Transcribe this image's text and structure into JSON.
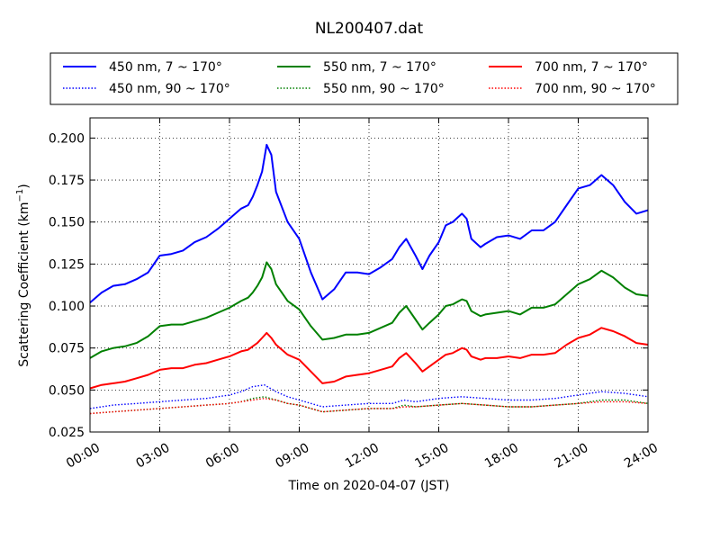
{
  "chart_data": {
    "type": "line",
    "title": "NL200407.dat",
    "xlabel": "Time on 2020-04-07 (JST)",
    "ylabel": "Scattering Coefficient (km",
    "ylabel_sup": "−1",
    "ylabel_close": ")",
    "x_unit": "time of day (hours)",
    "xlim": [
      0,
      24
    ],
    "ylim": [
      0.025,
      0.212
    ],
    "grid": true,
    "legend_placement": "top, above plot",
    "x_ticks": [
      {
        "value": 0,
        "label": "00:00"
      },
      {
        "value": 3,
        "label": "03:00"
      },
      {
        "value": 6,
        "label": "06:00"
      },
      {
        "value": 9,
        "label": "09:00"
      },
      {
        "value": 12,
        "label": "12:00"
      },
      {
        "value": 15,
        "label": "15:00"
      },
      {
        "value": 18,
        "label": "18:00"
      },
      {
        "value": 21,
        "label": "21:00"
      },
      {
        "value": 24,
        "label": "24:00"
      }
    ],
    "y_ticks": [
      {
        "value": 0.025,
        "label": "0.025"
      },
      {
        "value": 0.05,
        "label": "0.050"
      },
      {
        "value": 0.075,
        "label": "0.075"
      },
      {
        "value": 0.1,
        "label": "0.100"
      },
      {
        "value": 0.125,
        "label": "0.125"
      },
      {
        "value": 0.15,
        "label": "0.150"
      },
      {
        "value": 0.175,
        "label": "0.175"
      },
      {
        "value": 0.2,
        "label": "0.200"
      }
    ],
    "series": [
      {
        "name": "450 nm, 7 ~ 170°",
        "color": "#0000ff",
        "style": "solid",
        "x": [
          0,
          0.5,
          1,
          1.5,
          2,
          2.5,
          3,
          3.5,
          4,
          4.5,
          5,
          5.5,
          6,
          6.5,
          6.8,
          7,
          7.2,
          7.4,
          7.6,
          7.8,
          8,
          8.5,
          9,
          9.5,
          10,
          10.5,
          11,
          11.5,
          12,
          12.5,
          13,
          13.3,
          13.6,
          14,
          14.3,
          14.6,
          15,
          15.3,
          15.6,
          16,
          16.2,
          16.4,
          16.8,
          17,
          17.5,
          18,
          18.5,
          19,
          19.5,
          20,
          20.5,
          21,
          21.5,
          22,
          22.5,
          23,
          23.5,
          24
        ],
        "y": [
          0.102,
          0.108,
          0.112,
          0.113,
          0.116,
          0.12,
          0.13,
          0.131,
          0.133,
          0.138,
          0.141,
          0.146,
          0.152,
          0.158,
          0.16,
          0.165,
          0.172,
          0.18,
          0.196,
          0.19,
          0.168,
          0.15,
          0.14,
          0.12,
          0.104,
          0.11,
          0.12,
          0.12,
          0.119,
          0.123,
          0.128,
          0.135,
          0.14,
          0.13,
          0.122,
          0.13,
          0.138,
          0.148,
          0.15,
          0.155,
          0.152,
          0.14,
          0.135,
          0.137,
          0.141,
          0.142,
          0.14,
          0.145,
          0.145,
          0.15,
          0.16,
          0.17,
          0.172,
          0.178,
          0.172,
          0.162,
          0.155,
          0.157
        ]
      },
      {
        "name": "450 nm, 90 ~ 170°",
        "color": "#0000ff",
        "style": "dotted",
        "x": [
          0,
          1,
          2,
          3,
          4,
          5,
          6,
          6.5,
          7,
          7.5,
          8,
          8.5,
          9,
          10,
          11,
          12,
          13,
          13.5,
          14,
          15,
          16,
          17,
          18,
          19,
          20,
          21,
          22,
          23,
          24
        ],
        "y": [
          0.039,
          0.041,
          0.042,
          0.043,
          0.044,
          0.045,
          0.047,
          0.049,
          0.052,
          0.053,
          0.049,
          0.046,
          0.044,
          0.04,
          0.041,
          0.042,
          0.042,
          0.044,
          0.043,
          0.045,
          0.046,
          0.045,
          0.044,
          0.044,
          0.045,
          0.047,
          0.049,
          0.048,
          0.046
        ]
      },
      {
        "name": "550 nm, 7 ~ 170°",
        "color": "#008000",
        "style": "solid",
        "x": [
          0,
          0.5,
          1,
          1.5,
          2,
          2.5,
          3,
          3.5,
          4,
          4.5,
          5,
          5.5,
          6,
          6.5,
          6.8,
          7,
          7.2,
          7.4,
          7.6,
          7.8,
          8,
          8.5,
          9,
          9.5,
          10,
          10.5,
          11,
          11.5,
          12,
          12.5,
          13,
          13.3,
          13.6,
          14,
          14.3,
          14.6,
          15,
          15.3,
          15.6,
          16,
          16.2,
          16.4,
          16.8,
          17,
          17.5,
          18,
          18.5,
          19,
          19.5,
          20,
          20.5,
          21,
          21.5,
          22,
          22.5,
          23,
          23.5,
          24
        ],
        "y": [
          0.069,
          0.073,
          0.075,
          0.076,
          0.078,
          0.082,
          0.088,
          0.089,
          0.089,
          0.091,
          0.093,
          0.096,
          0.099,
          0.103,
          0.105,
          0.108,
          0.112,
          0.117,
          0.126,
          0.122,
          0.113,
          0.103,
          0.098,
          0.088,
          0.08,
          0.081,
          0.083,
          0.083,
          0.084,
          0.087,
          0.09,
          0.096,
          0.1,
          0.092,
          0.086,
          0.09,
          0.095,
          0.1,
          0.101,
          0.104,
          0.103,
          0.097,
          0.094,
          0.095,
          0.096,
          0.097,
          0.095,
          0.099,
          0.099,
          0.101,
          0.107,
          0.113,
          0.116,
          0.121,
          0.117,
          0.111,
          0.107,
          0.106
        ]
      },
      {
        "name": "550 nm, 90 ~ 170°",
        "color": "#008000",
        "style": "dotted",
        "x": [
          0,
          1,
          2,
          3,
          4,
          5,
          6,
          6.5,
          7,
          7.5,
          8,
          8.5,
          9,
          10,
          11,
          12,
          13,
          13.5,
          14,
          15,
          16,
          17,
          18,
          19,
          20,
          21,
          22,
          23,
          24
        ],
        "y": [
          0.036,
          0.037,
          0.038,
          0.039,
          0.04,
          0.041,
          0.042,
          0.043,
          0.045,
          0.046,
          0.044,
          0.042,
          0.041,
          0.037,
          0.038,
          0.039,
          0.039,
          0.041,
          0.04,
          0.041,
          0.042,
          0.041,
          0.04,
          0.04,
          0.041,
          0.042,
          0.044,
          0.044,
          0.042
        ]
      },
      {
        "name": "700 nm, 7 ~ 170°",
        "color": "#ff0000",
        "style": "solid",
        "x": [
          0,
          0.5,
          1,
          1.5,
          2,
          2.5,
          3,
          3.5,
          4,
          4.5,
          5,
          5.5,
          6,
          6.5,
          6.8,
          7,
          7.2,
          7.4,
          7.6,
          7.8,
          8,
          8.5,
          9,
          9.5,
          10,
          10.5,
          11,
          11.5,
          12,
          12.5,
          13,
          13.3,
          13.6,
          14,
          14.3,
          14.6,
          15,
          15.3,
          15.6,
          16,
          16.2,
          16.4,
          16.8,
          17,
          17.5,
          18,
          18.5,
          19,
          19.5,
          20,
          20.5,
          21,
          21.5,
          22,
          22.5,
          23,
          23.5,
          24
        ],
        "y": [
          0.051,
          0.053,
          0.054,
          0.055,
          0.057,
          0.059,
          0.062,
          0.063,
          0.063,
          0.065,
          0.066,
          0.068,
          0.07,
          0.073,
          0.074,
          0.076,
          0.078,
          0.081,
          0.084,
          0.081,
          0.077,
          0.071,
          0.068,
          0.061,
          0.054,
          0.055,
          0.058,
          0.059,
          0.06,
          0.062,
          0.064,
          0.069,
          0.072,
          0.066,
          0.061,
          0.064,
          0.068,
          0.071,
          0.072,
          0.075,
          0.074,
          0.07,
          0.068,
          0.069,
          0.069,
          0.07,
          0.069,
          0.071,
          0.071,
          0.072,
          0.077,
          0.081,
          0.083,
          0.087,
          0.085,
          0.082,
          0.078,
          0.077
        ]
      },
      {
        "name": "700 nm, 90 ~ 170°",
        "color": "#ff0000",
        "style": "dotted",
        "x": [
          0,
          1,
          2,
          3,
          4,
          5,
          6,
          6.5,
          7,
          7.5,
          8,
          8.5,
          9,
          10,
          11,
          12,
          13,
          13.5,
          14,
          15,
          16,
          17,
          18,
          19,
          20,
          21,
          22,
          23,
          24
        ],
        "y": [
          0.036,
          0.037,
          0.038,
          0.039,
          0.04,
          0.041,
          0.042,
          0.043,
          0.044,
          0.045,
          0.044,
          0.042,
          0.041,
          0.037,
          0.038,
          0.039,
          0.039,
          0.04,
          0.04,
          0.041,
          0.042,
          0.041,
          0.04,
          0.04,
          0.041,
          0.042,
          0.043,
          0.043,
          0.042
        ]
      }
    ]
  }
}
